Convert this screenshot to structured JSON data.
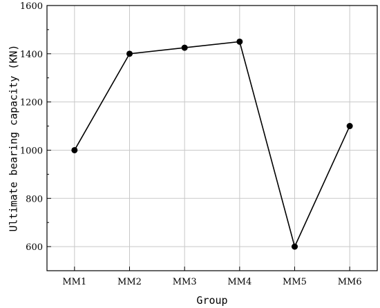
{
  "chart_data": {
    "type": "line",
    "categories": [
      "MM1",
      "MM2",
      "MM3",
      "MM4",
      "MM5",
      "MM6"
    ],
    "series": [
      {
        "values": [
          1000,
          1400,
          1425,
          1450,
          600,
          1100
        ]
      }
    ],
    "xlabel": "Group",
    "ylabel": "Ultimate bearing capacity (KN)",
    "ylim": [
      500,
      1600
    ],
    "yticks": [
      600,
      800,
      1000,
      1200,
      1400,
      1600
    ],
    "grid": true,
    "colors": {
      "line": "#000000",
      "grid": "#c8c8c8",
      "axis": "#000000"
    }
  }
}
